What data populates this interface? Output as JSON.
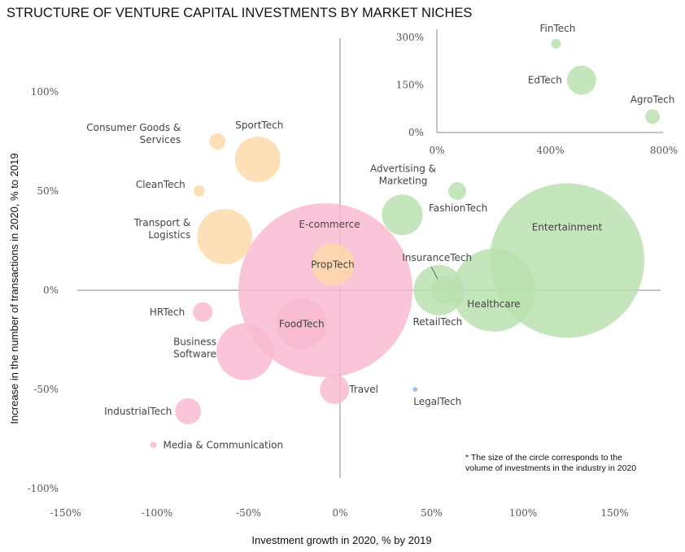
{
  "colors": {
    "orange": "#fdd9a8",
    "pink": "#f9b8cf",
    "green": "#b8dfae",
    "blue": "#8fb8e6"
  },
  "chart_data": [
    {
      "type": "scatter",
      "subtype": "bubble",
      "title": "STRUCTURE OF VENTURE CAPITAL INVESTMENTS BY MARKET NICHES",
      "xlabel": "Investment growth in 2020, % by 2019",
      "ylabel": "Increase in the number of transactions in 2020, % to 2019",
      "xlim": [
        -150,
        150
      ],
      "ylim": [
        -100,
        100
      ],
      "x_ticks": [
        "-150%",
        "-100%",
        "-50%",
        "0%",
        "50%",
        "100%",
        "150%"
      ],
      "y_ticks": [
        "100%",
        "50%",
        "0%",
        "-50%",
        "-100%"
      ],
      "grid": false,
      "note": [
        "* The size of the circle corresponds to the",
        "volume of investments in the industry in 2020"
      ],
      "points": [
        {
          "label": [
            "SportTech"
          ],
          "x": -45,
          "y": 66,
          "size": 28,
          "group": "orange"
        },
        {
          "label": [
            "Consumer Goods &",
            "Services"
          ],
          "x": -67,
          "y": 75,
          "size": 10,
          "group": "orange"
        },
        {
          "label": [
            "CleanTech"
          ],
          "x": -77,
          "y": 50,
          "size": 7,
          "group": "orange"
        },
        {
          "label": [
            "Transport &",
            "Logistics"
          ],
          "x": -63,
          "y": 27,
          "size": 34,
          "group": "orange"
        },
        {
          "label": [
            "PropTech"
          ],
          "x": -4,
          "y": 13,
          "size": 26,
          "group": "orange"
        },
        {
          "label": [
            "E-commerce"
          ],
          "x": -8,
          "y": 0,
          "size": 107,
          "group": "pink"
        },
        {
          "label": [
            "FoodTech"
          ],
          "x": -21,
          "y": -17,
          "size": 31,
          "group": "pink"
        },
        {
          "label": [
            "HRTech"
          ],
          "x": -75,
          "y": -11,
          "size": 12,
          "group": "pink"
        },
        {
          "label": [
            "Business",
            "Software"
          ],
          "x": -52,
          "y": -31,
          "size": 35,
          "group": "pink"
        },
        {
          "label": [
            "Travel"
          ],
          "x": -3,
          "y": -50,
          "size": 18,
          "group": "pink"
        },
        {
          "label": [
            "IndustrialTech"
          ],
          "x": -83,
          "y": -61,
          "size": 16,
          "group": "pink"
        },
        {
          "label": [
            "Media & Communication"
          ],
          "x": -102,
          "y": -78,
          "size": 4,
          "group": "pink"
        },
        {
          "label": [
            "LegalTech"
          ],
          "x": 41,
          "y": -50,
          "size": 3,
          "group": "blue"
        },
        {
          "label": [
            "Advertising &",
            "Marketing"
          ],
          "x": 34,
          "y": 38,
          "size": 25,
          "group": "green"
        },
        {
          "label": [
            "FashionTech"
          ],
          "x": 64,
          "y": 50,
          "size": 11,
          "group": "green"
        },
        {
          "label": [
            "InsuranceTech"
          ],
          "x": 57,
          "y": 0,
          "size": 17,
          "group": "green"
        },
        {
          "label": [
            "RetailTech"
          ],
          "x": 54,
          "y": 0,
          "size": 31,
          "group": "green"
        },
        {
          "label": [
            "Healthcare"
          ],
          "x": 84,
          "y": 0,
          "size": 51,
          "group": "green"
        },
        {
          "label": [
            "Entertainment"
          ],
          "x": 124,
          "y": 15,
          "size": 95,
          "group": "green"
        }
      ]
    },
    {
      "type": "scatter",
      "subtype": "bubble",
      "xlim": [
        0,
        800
      ],
      "ylim": [
        0,
        300
      ],
      "x_ticks": [
        "0%",
        "400%",
        "800%"
      ],
      "y_ticks": [
        "300%",
        "150%",
        "0%"
      ],
      "points": [
        {
          "label": [
            "FinTech"
          ],
          "x": 420,
          "y": 280,
          "size": 6,
          "group": "green"
        },
        {
          "label": [
            "EdTech"
          ],
          "x": 510,
          "y": 165,
          "size": 18,
          "group": "green"
        },
        {
          "label": [
            "AgroTech"
          ],
          "x": 760,
          "y": 50,
          "size": 9,
          "group": "green"
        }
      ]
    }
  ]
}
